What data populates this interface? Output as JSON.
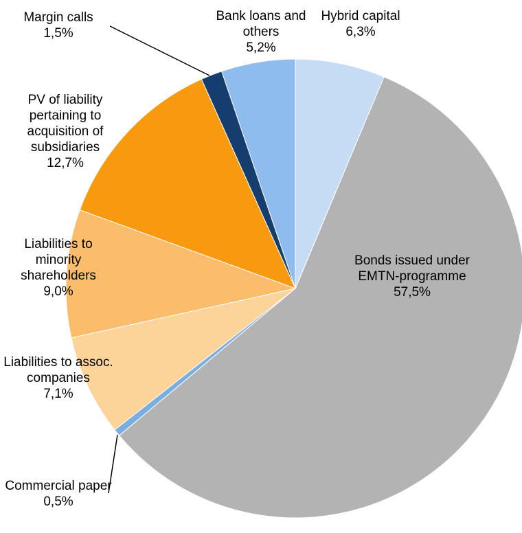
{
  "chart_data": {
    "type": "pie",
    "categories": [
      "Hybrid capital",
      "Bonds issued under EMTN-programme",
      "Commercial paper",
      "Liabilities to assoc. companies",
      "Liabilities to minority shareholders",
      "PV of liability pertaining to acquisition of subsidiaries",
      "Margin calls",
      "Bank loans and others"
    ],
    "values": [
      6.3,
      57.5,
      0.5,
      7.1,
      9.0,
      12.7,
      1.5,
      5.2
    ],
    "value_labels": [
      "6,3%",
      "57,5%",
      "0,5%",
      "7,1%",
      "9,0%",
      "12,7%",
      "1,5%",
      "5,2%"
    ],
    "colors": [
      "#c6dcf5",
      "#b3b3b3",
      "#7aaee0",
      "#fcd49a",
      "#fbbd6c",
      "#f79a0e",
      "#153e6e",
      "#8ebcee"
    ]
  }
}
